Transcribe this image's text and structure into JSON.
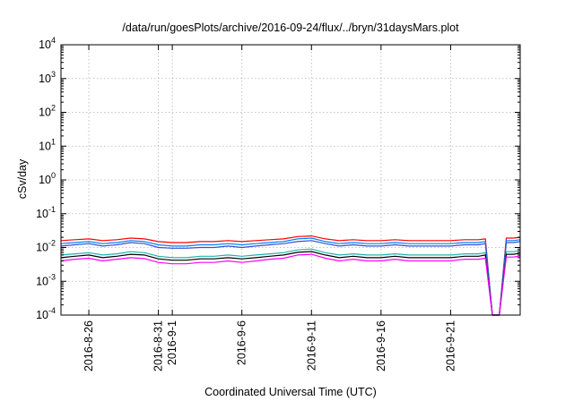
{
  "chart_data": {
    "type": "line",
    "title": "/data/run/goesPlots/archive/2016-09-24/flux/../bryn/31daysMars.plot",
    "xlabel": "Coordinated Universal Time (UTC)",
    "ylabel": "cSv/day",
    "yscale": "log",
    "ylim": [
      0.0001,
      10000
    ],
    "xlim": [
      "2016-08-24T00:00",
      "2016-09-26T00:00"
    ],
    "grid": true,
    "legend": "none",
    "y_ticks": [
      {
        "base": "10",
        "exp": "-4"
      },
      {
        "base": "10",
        "exp": "-3"
      },
      {
        "base": "10",
        "exp": "-2"
      },
      {
        "base": "10",
        "exp": "-1"
      },
      {
        "base": "10",
        "exp": "0"
      },
      {
        "base": "10",
        "exp": "1"
      },
      {
        "base": "10",
        "exp": "2"
      },
      {
        "base": "10",
        "exp": "3"
      },
      {
        "base": "10",
        "exp": "4"
      }
    ],
    "x_ticks": [
      {
        "date": "2016-08-26T00:00",
        "label": "2016-8-26"
      },
      {
        "date": "2016-08-31T00:00",
        "label": "2016-8-31"
      },
      {
        "date": "2016-09-01T00:00",
        "label": "2016-9-1"
      },
      {
        "date": "2016-09-06T00:00",
        "label": "2016-9-6"
      },
      {
        "date": "2016-09-11T00:00",
        "label": "2016-9-11"
      },
      {
        "date": "2016-09-16T00:00",
        "label": "2016-9-16"
      },
      {
        "date": "2016-09-21T00:00",
        "label": "2016-9-21"
      }
    ],
    "x": [
      "2016-08-24T00:00",
      "2016-08-25T00:00",
      "2016-08-26T00:00",
      "2016-08-27T00:00",
      "2016-08-28T00:00",
      "2016-08-29T00:00",
      "2016-08-30T00:00",
      "2016-08-31T00:00",
      "2016-09-01T00:00",
      "2016-09-02T00:00",
      "2016-09-03T00:00",
      "2016-09-04T00:00",
      "2016-09-05T00:00",
      "2016-09-06T00:00",
      "2016-09-07T00:00",
      "2016-09-08T00:00",
      "2016-09-09T00:00",
      "2016-09-10T00:00",
      "2016-09-11T00:00",
      "2016-09-12T00:00",
      "2016-09-13T00:00",
      "2016-09-14T00:00",
      "2016-09-15T00:00",
      "2016-09-16T00:00",
      "2016-09-17T00:00",
      "2016-09-18T00:00",
      "2016-09-19T00:00",
      "2016-09-20T00:00",
      "2016-09-21T00:00",
      "2016-09-22T00:00",
      "2016-09-23T00:00",
      "2016-09-23T12:00",
      "2016-09-24T00:00",
      "2016-09-24T12:00",
      "2016-09-25T00:00",
      "2016-09-25T12:00",
      "2016-09-26T00:00"
    ],
    "series": [
      {
        "color": "#ff0000",
        "values": [
          0.016,
          0.017,
          0.018,
          0.016,
          0.017,
          0.019,
          0.018,
          0.015,
          0.014,
          0.014,
          0.015,
          0.015,
          0.016,
          0.015,
          0.016,
          0.017,
          0.018,
          0.021,
          0.022,
          0.018,
          0.016,
          0.017,
          0.016,
          0.016,
          0.017,
          0.016,
          0.016,
          0.016,
          0.016,
          0.017,
          0.017,
          0.018,
          0.0001,
          0.0001,
          0.019,
          0.019,
          0.02
        ]
      },
      {
        "color": "#0080ff",
        "values": [
          0.013,
          0.014,
          0.015,
          0.013,
          0.014,
          0.016,
          0.015,
          0.012,
          0.011,
          0.011,
          0.012,
          0.012,
          0.013,
          0.012,
          0.013,
          0.014,
          0.015,
          0.018,
          0.019,
          0.015,
          0.013,
          0.014,
          0.013,
          0.013,
          0.014,
          0.013,
          0.013,
          0.013,
          0.013,
          0.014,
          0.014,
          0.015,
          0.0001,
          0.0001,
          0.016,
          0.016,
          0.017
        ]
      },
      {
        "color": "#3050d0",
        "values": [
          0.011,
          0.012,
          0.013,
          0.011,
          0.012,
          0.014,
          0.013,
          0.01,
          0.0095,
          0.0095,
          0.01,
          0.01,
          0.011,
          0.01,
          0.011,
          0.012,
          0.013,
          0.015,
          0.016,
          0.013,
          0.011,
          0.012,
          0.011,
          0.011,
          0.012,
          0.011,
          0.011,
          0.011,
          0.011,
          0.012,
          0.012,
          0.013,
          0.0001,
          0.0001,
          0.014,
          0.014,
          0.015
        ]
      },
      {
        "color": "#20b2aa",
        "values": [
          0.006,
          0.0065,
          0.007,
          0.006,
          0.0065,
          0.0075,
          0.007,
          0.0055,
          0.005,
          0.005,
          0.0055,
          0.0055,
          0.006,
          0.0055,
          0.006,
          0.0065,
          0.007,
          0.0085,
          0.009,
          0.007,
          0.006,
          0.0065,
          0.006,
          0.006,
          0.0065,
          0.006,
          0.006,
          0.006,
          0.006,
          0.0065,
          0.0065,
          0.007,
          0.0001,
          0.0001,
          0.0075,
          0.0075,
          0.008
        ]
      },
      {
        "color": "#000000",
        "values": [
          0.005,
          0.0055,
          0.006,
          0.005,
          0.0055,
          0.0063,
          0.006,
          0.0046,
          0.0042,
          0.0042,
          0.0046,
          0.0046,
          0.005,
          0.0046,
          0.005,
          0.0055,
          0.006,
          0.0072,
          0.0076,
          0.006,
          0.005,
          0.0055,
          0.005,
          0.005,
          0.0055,
          0.005,
          0.005,
          0.005,
          0.005,
          0.0055,
          0.0055,
          0.006,
          0.0001,
          0.0001,
          0.0063,
          0.0063,
          0.0068
        ]
      },
      {
        "color": "#ff00ff",
        "values": [
          0.004,
          0.0045,
          0.0048,
          0.004,
          0.0045,
          0.005,
          0.0047,
          0.0036,
          0.0033,
          0.0033,
          0.0036,
          0.0036,
          0.004,
          0.0036,
          0.004,
          0.0045,
          0.0048,
          0.006,
          0.0063,
          0.0048,
          0.004,
          0.0045,
          0.004,
          0.004,
          0.0045,
          0.004,
          0.004,
          0.004,
          0.004,
          0.0045,
          0.0045,
          0.0048,
          0.0001,
          0.0001,
          0.0052,
          0.0052,
          0.0056
        ]
      }
    ]
  }
}
